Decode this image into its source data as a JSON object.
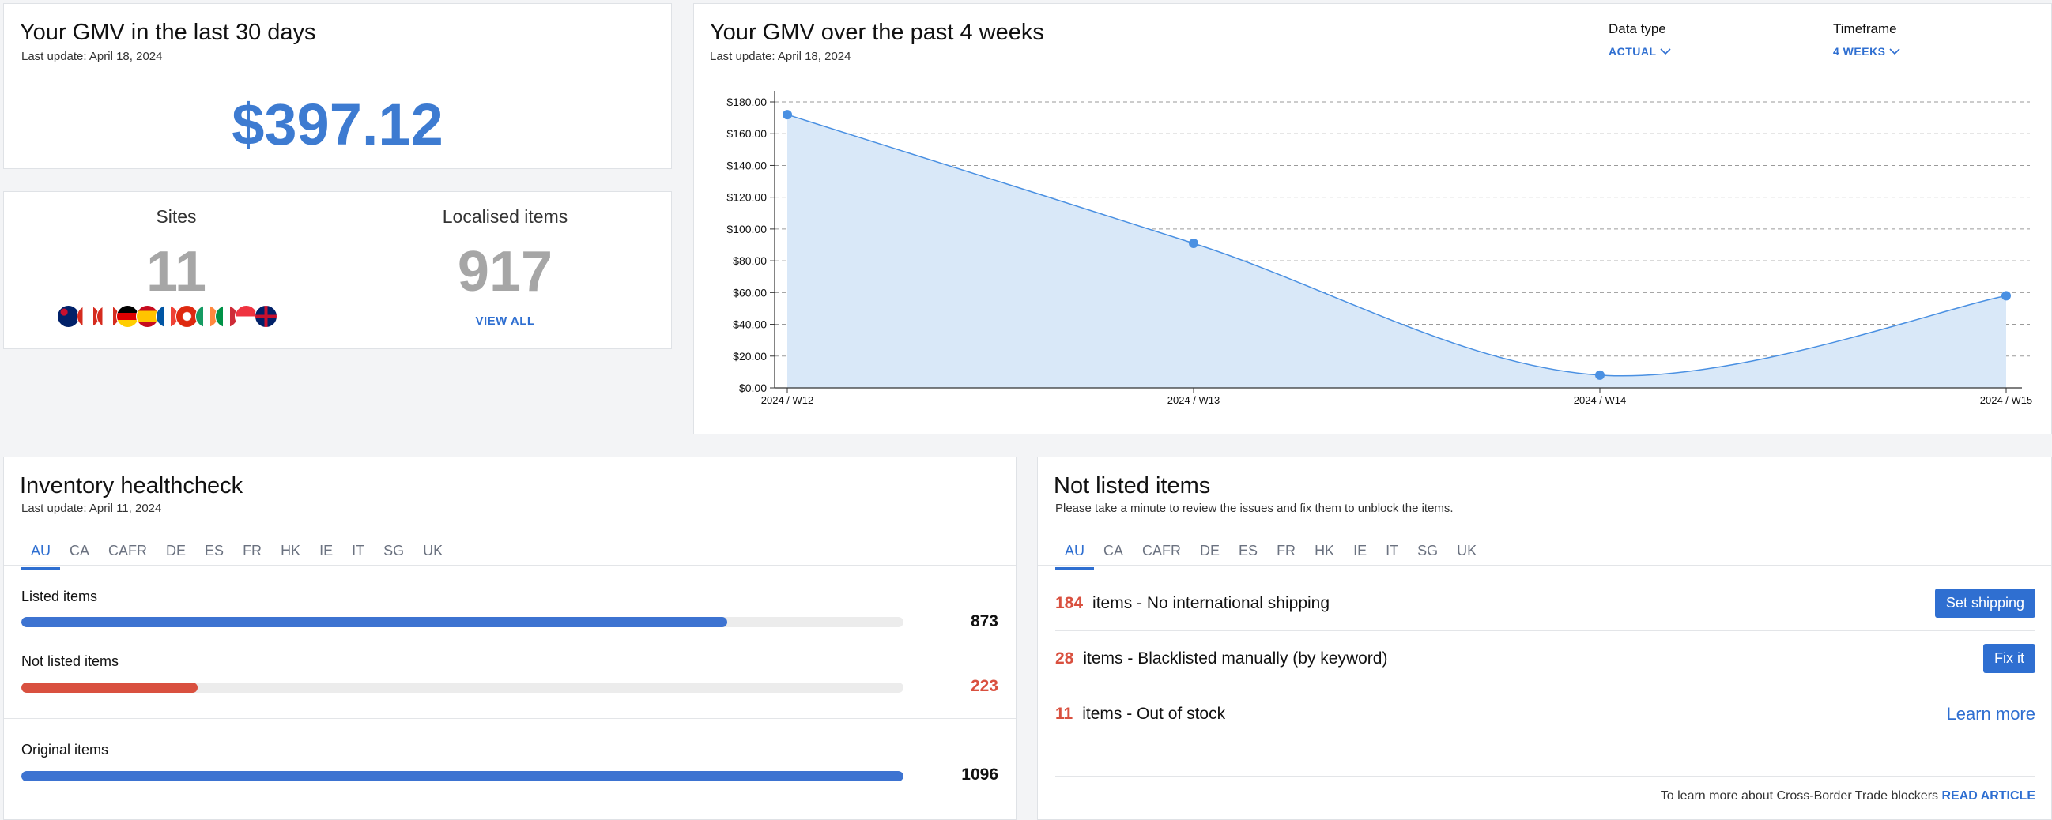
{
  "gmv30": {
    "title": "Your GMV in the last 30 days",
    "updated": "Last update: April 18, 2024",
    "value": "$397.12"
  },
  "stats": {
    "sites_label": "Sites",
    "sites_value": "11",
    "items_label": "Localised items",
    "items_value": "917",
    "view_all": "VIEW ALL",
    "flags": [
      "au",
      "ca",
      "ca-fr",
      "de",
      "es",
      "fr",
      "hk",
      "ie",
      "it",
      "sg",
      "uk"
    ]
  },
  "gmv4": {
    "title": "Your GMV over the past 4 weeks",
    "updated": "Last update: April 18, 2024",
    "data_type_label": "Data type",
    "data_type_value": "ACTUAL",
    "timeframe_label": "Timeframe",
    "timeframe_value": "4 WEEKS"
  },
  "chart_data": {
    "type": "area",
    "categories": [
      "2024 / W12",
      "2024 / W13",
      "2024 / W14",
      "2024 / W15"
    ],
    "values": [
      172,
      91,
      8,
      58
    ],
    "ylim": [
      0,
      180
    ],
    "yticks": [
      "$0.00",
      "$20.00",
      "$40.00",
      "$60.00",
      "$80.00",
      "$100.00",
      "$120.00",
      "$140.00",
      "$160.00",
      "$180.00"
    ],
    "grid": true,
    "color": "#4a90e2"
  },
  "inventory": {
    "title": "Inventory healthcheck",
    "updated": "Last update: April 11, 2024",
    "tabs": [
      "AU",
      "CA",
      "CAFR",
      "DE",
      "ES",
      "FR",
      "HK",
      "IE",
      "IT",
      "SG",
      "UK"
    ],
    "listed_label": "Listed items",
    "listed_value": "873",
    "listed_fraction": 0.8,
    "notlisted_label": "Not listed items",
    "notlisted_value": "223",
    "notlisted_fraction": 0.2,
    "original_label": "Original items",
    "original_value": "1096",
    "original_fraction": 1.0
  },
  "notlisted": {
    "title": "Not listed items",
    "subtitle": "Please take a minute to review the issues and fix them to unblock the items.",
    "tabs": [
      "AU",
      "CA",
      "CAFR",
      "DE",
      "ES",
      "FR",
      "HK",
      "IE",
      "IT",
      "SG",
      "UK"
    ],
    "issues": [
      {
        "count": "184",
        "text": "items - No international shipping",
        "action": "Set shipping"
      },
      {
        "count": "28",
        "text": "items - Blacklisted manually (by keyword)",
        "action": "Fix it"
      },
      {
        "count": "11",
        "text": "items - Out of stock",
        "action": "Learn more"
      }
    ],
    "footer_text": "To learn more about Cross-Border Trade blockers",
    "footer_link": "READ ARTICLE"
  }
}
